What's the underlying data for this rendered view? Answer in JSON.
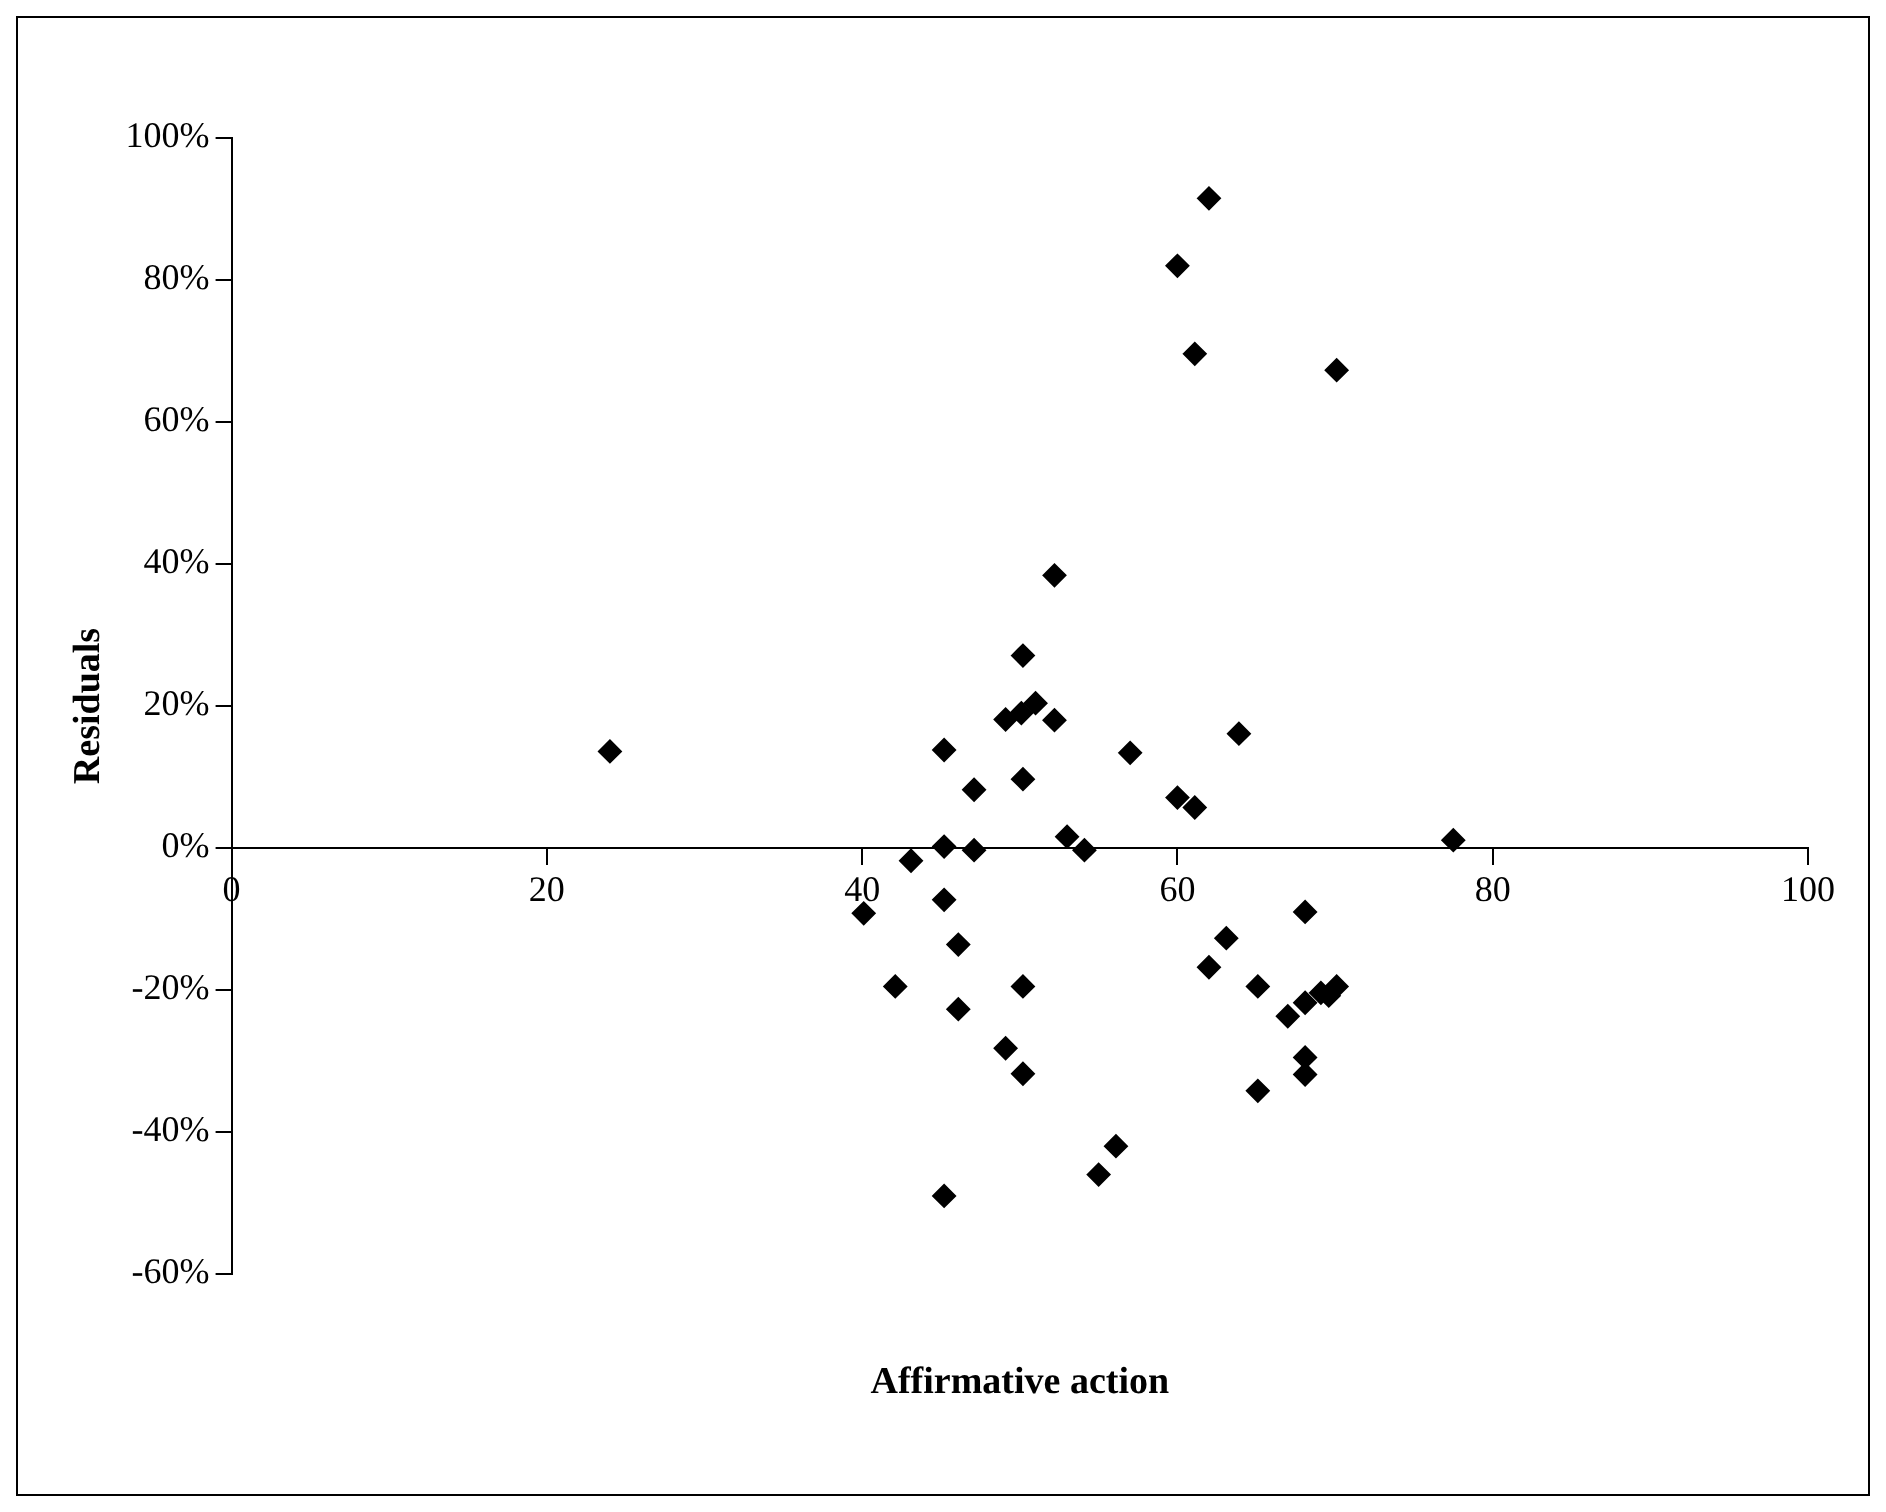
{
  "chart_data": {
    "type": "scatter",
    "xlabel": "Affirmative action",
    "ylabel": "Residuals",
    "marker": "diamond",
    "grid": false,
    "legend": false,
    "xlim": [
      0,
      100
    ],
    "xticks": [
      0,
      20,
      40,
      60,
      80,
      100
    ],
    "ylim": [
      -60,
      100
    ],
    "yticks": [
      {
        "value": -60,
        "label": "-60%"
      },
      {
        "value": -40,
        "label": "-40%"
      },
      {
        "value": -20,
        "label": "-20%"
      },
      {
        "value": 0,
        "label": "0%"
      },
      {
        "value": 20,
        "label": "20%"
      },
      {
        "value": 40,
        "label": "40%"
      },
      {
        "value": 60,
        "label": "60%"
      },
      {
        "value": 80,
        "label": "80%"
      },
      {
        "value": 100,
        "label": "100%"
      }
    ],
    "series": [
      {
        "color": "#000000",
        "x": [
          24,
          62,
          60,
          61.1,
          70.1,
          52.2,
          50.2,
          51,
          50.1,
          49.1,
          52.2,
          45.2,
          57,
          63.9,
          47.1,
          50.2,
          60,
          61.1,
          45.2,
          47.1,
          43.1,
          53,
          54.1,
          77.5,
          40.1,
          45.2,
          46.1,
          42.1,
          50.2,
          46.1,
          49.1,
          50.2,
          56.1,
          55,
          45.2,
          68.1,
          63.1,
          62,
          65.1,
          70.1,
          69.1,
          68.1,
          67,
          68.1,
          68.1,
          65.1,
          69.6
        ],
        "values": [
          13.6,
          91.5,
          82,
          69.6,
          67.3,
          38.4,
          27.1,
          20.4,
          19,
          18.1,
          18,
          13.8,
          13.4,
          16.1,
          8.2,
          9.7,
          7.1,
          5.7,
          0.2,
          -0.3,
          -1.8,
          1.6,
          -0.3,
          1.1,
          -9.2,
          -7.3,
          -13.6,
          -19.5,
          -19.5,
          -22.7,
          -28.2,
          -31.8,
          -42,
          -46,
          -49,
          -9,
          -12.7,
          -16.8,
          -19.5,
          -19.5,
          -20.4,
          -21.8,
          -23.7,
          -29.5,
          -31.9,
          -34.2,
          -20.8
        ]
      }
    ]
  }
}
